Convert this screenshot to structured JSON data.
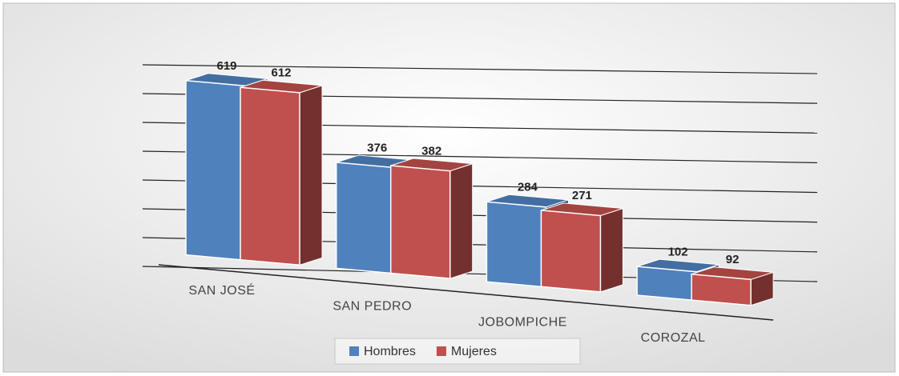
{
  "chart_data": {
    "type": "bar3d",
    "categories": [
      "SAN JOSÉ",
      "SAN PEDRO",
      "JOBOMPICHE",
      "COROZAL"
    ],
    "series": [
      {
        "name": "Hombres",
        "color": "#4f81bd",
        "values": [
          619,
          376,
          284,
          102
        ]
      },
      {
        "name": "Mujeres",
        "color": "#c0504d",
        "values": [
          612,
          382,
          271,
          92
        ]
      }
    ],
    "ylim": [
      0,
      700
    ],
    "yticks": [
      0,
      100,
      200,
      300,
      400,
      500,
      600,
      700
    ],
    "grid": true,
    "legend": "bottom"
  }
}
